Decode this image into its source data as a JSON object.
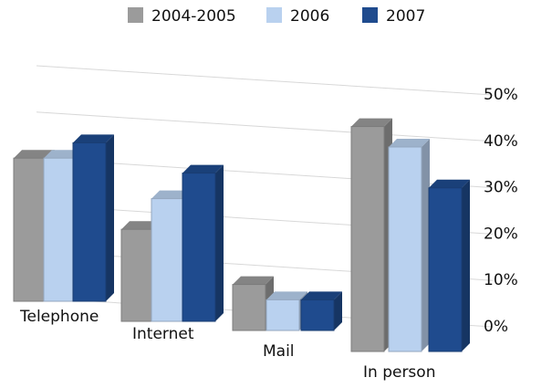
{
  "chart_data": {
    "type": "bar3d",
    "categories": [
      "Telephone",
      "Internet",
      "Mail",
      "In person"
    ],
    "series": [
      {
        "name": "2004-2005",
        "color": "#9b9b9b",
        "values": [
          28,
          18,
          9,
          44
        ]
      },
      {
        "name": "2006",
        "color": "#b9d1ef",
        "values": [
          28,
          24,
          6,
          40
        ]
      },
      {
        "name": "2007",
        "color": "#1f4b8e",
        "values": [
          31,
          29,
          6,
          32
        ]
      }
    ],
    "ylim": [
      0,
      50
    ],
    "yticks": [
      {
        "value": 0,
        "label": "0%"
      },
      {
        "value": 10,
        "label": "10%"
      },
      {
        "value": 20,
        "label": "20%"
      },
      {
        "value": 30,
        "label": "30%"
      },
      {
        "value": 40,
        "label": "40%"
      },
      {
        "value": 50,
        "label": "50%"
      }
    ],
    "grid": true
  }
}
